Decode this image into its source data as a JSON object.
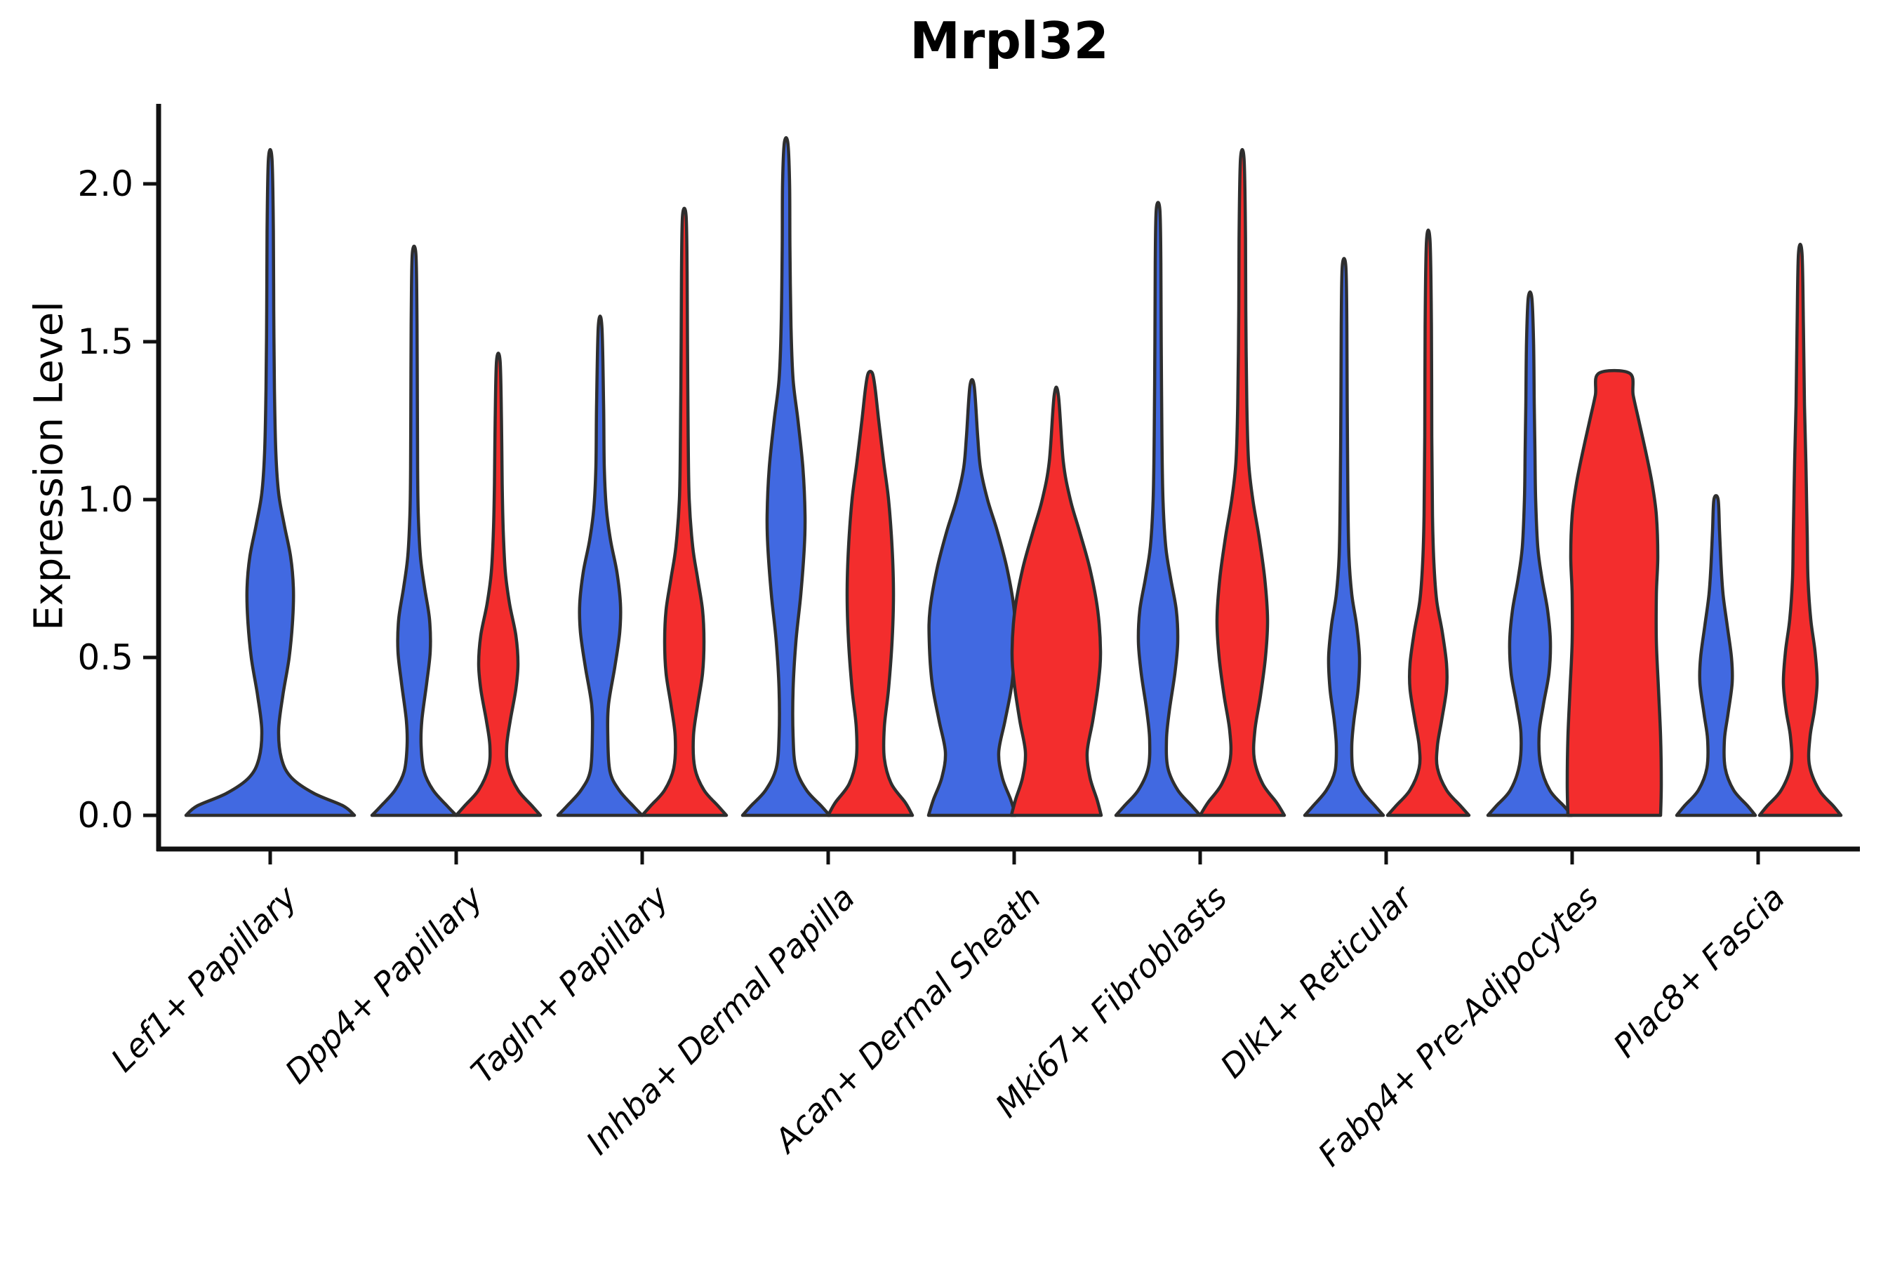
{
  "title": "Mrpl32",
  "ylabel": "Expression Level",
  "colors": {
    "blue": "#4169E1",
    "red": "#F32D2D",
    "outline": "#2E2E2E",
    "axis": "#111111",
    "text": "#000000"
  },
  "chart_data": {
    "type": "violin",
    "title": "Mrpl32",
    "ylabel": "Expression Level",
    "xlabel": "",
    "ylim": [
      -0.12,
      2.25
    ],
    "grid": false,
    "legend": "none",
    "yticks": [
      0.0,
      0.5,
      1.0,
      1.5,
      2.0
    ],
    "ytick_labels": [
      "0.0",
      "0.5",
      "1.0",
      "1.5",
      "2.0"
    ],
    "categories": [
      "Lef1+ Papillary",
      "Dpp4+ Papillary",
      "Tagln+ Papillary",
      "Inhba+ Dermal Papilla",
      "Acan+ Dermal Sheath",
      "Mki67+ Fibroblasts",
      "Dlk1+ Reticular",
      "Fabp4+ Pre-Adipocytes",
      "Plac8+ Fascia"
    ],
    "series_colors": {
      "blue": "#4169E1",
      "red": "#F32D2D"
    },
    "violins": [
      {
        "category_index": 0,
        "group": "blue",
        "peak_expression": 2.08,
        "profile": [
          [
            0,
            120
          ],
          [
            0.03,
            104
          ],
          [
            0.07,
            62
          ],
          [
            0.12,
            30
          ],
          [
            0.18,
            16
          ],
          [
            0.27,
            12
          ],
          [
            0.38,
            18
          ],
          [
            0.5,
            27
          ],
          [
            0.62,
            32
          ],
          [
            0.72,
            33
          ],
          [
            0.82,
            29
          ],
          [
            0.92,
            20
          ],
          [
            1.02,
            12
          ],
          [
            1.15,
            8
          ],
          [
            1.35,
            6
          ],
          [
            1.6,
            5
          ],
          [
            1.85,
            4.5
          ],
          [
            2.08,
            2.5
          ]
        ]
      },
      {
        "category_index": 1,
        "group": "blue",
        "peak_expression": 1.78,
        "profile": [
          [
            0,
            60
          ],
          [
            0.03,
            47
          ],
          [
            0.08,
            27
          ],
          [
            0.14,
            14
          ],
          [
            0.22,
            10
          ],
          [
            0.3,
            11
          ],
          [
            0.42,
            18
          ],
          [
            0.52,
            23
          ],
          [
            0.62,
            22
          ],
          [
            0.72,
            15
          ],
          [
            0.82,
            9
          ],
          [
            0.95,
            6
          ],
          [
            1.1,
            5
          ],
          [
            1.4,
            4.5
          ],
          [
            1.6,
            4
          ],
          [
            1.78,
            2.5
          ]
        ]
      },
      {
        "category_index": 1,
        "group": "red",
        "peak_expression": 1.44,
        "profile": [
          [
            0,
            60
          ],
          [
            0.03,
            48
          ],
          [
            0.08,
            28
          ],
          [
            0.15,
            14
          ],
          [
            0.22,
            12
          ],
          [
            0.3,
            17
          ],
          [
            0.4,
            25
          ],
          [
            0.48,
            28
          ],
          [
            0.57,
            25
          ],
          [
            0.67,
            16
          ],
          [
            0.77,
            10
          ],
          [
            0.9,
            7
          ],
          [
            1.05,
            5.5
          ],
          [
            1.25,
            4.5
          ],
          [
            1.44,
            2.5
          ]
        ]
      },
      {
        "category_index": 2,
        "group": "blue",
        "peak_expression": 1.55,
        "profile": [
          [
            0,
            60
          ],
          [
            0.03,
            47
          ],
          [
            0.08,
            27
          ],
          [
            0.14,
            14
          ],
          [
            0.25,
            11
          ],
          [
            0.35,
            12
          ],
          [
            0.47,
            21
          ],
          [
            0.58,
            28
          ],
          [
            0.67,
            29
          ],
          [
            0.77,
            24
          ],
          [
            0.87,
            15
          ],
          [
            0.97,
            9
          ],
          [
            1.1,
            6
          ],
          [
            1.3,
            5
          ],
          [
            1.55,
            2.5
          ]
        ]
      },
      {
        "category_index": 2,
        "group": "red",
        "peak_expression": 1.9,
        "profile": [
          [
            0,
            60
          ],
          [
            0.03,
            48
          ],
          [
            0.08,
            28
          ],
          [
            0.15,
            15
          ],
          [
            0.25,
            13
          ],
          [
            0.35,
            19
          ],
          [
            0.45,
            26
          ],
          [
            0.55,
            28
          ],
          [
            0.65,
            26
          ],
          [
            0.75,
            19
          ],
          [
            0.85,
            12
          ],
          [
            1.0,
            7
          ],
          [
            1.2,
            5.5
          ],
          [
            1.5,
            4.5
          ],
          [
            1.72,
            4
          ],
          [
            1.9,
            2.5
          ]
        ]
      },
      {
        "category_index": 3,
        "group": "blue",
        "peak_expression": 2.13,
        "profile": [
          [
            0,
            62
          ],
          [
            0.03,
            50
          ],
          [
            0.08,
            29
          ],
          [
            0.15,
            14
          ],
          [
            0.25,
            10
          ],
          [
            0.4,
            10
          ],
          [
            0.55,
            14
          ],
          [
            0.7,
            21
          ],
          [
            0.85,
            26
          ],
          [
            0.95,
            27
          ],
          [
            1.1,
            24
          ],
          [
            1.25,
            17
          ],
          [
            1.38,
            10
          ],
          [
            1.55,
            7
          ],
          [
            1.8,
            5.5
          ],
          [
            2.0,
            5
          ],
          [
            2.13,
            2.5
          ]
        ]
      },
      {
        "category_index": 3,
        "group": "red",
        "peak_expression": 1.4,
        "profile": [
          [
            0,
            60
          ],
          [
            0.04,
            50
          ],
          [
            0.1,
            30
          ],
          [
            0.18,
            20
          ],
          [
            0.28,
            20
          ],
          [
            0.4,
            26
          ],
          [
            0.55,
            31
          ],
          [
            0.7,
            33
          ],
          [
            0.85,
            31
          ],
          [
            1.0,
            26
          ],
          [
            1.12,
            19
          ],
          [
            1.25,
            12
          ],
          [
            1.35,
            7
          ],
          [
            1.4,
            3
          ]
        ]
      },
      {
        "category_index": 4,
        "group": "blue",
        "peak_expression": 1.36,
        "profile": [
          [
            0,
            62
          ],
          [
            0.05,
            55
          ],
          [
            0.12,
            43
          ],
          [
            0.2,
            38
          ],
          [
            0.3,
            47
          ],
          [
            0.42,
            57
          ],
          [
            0.55,
            61
          ],
          [
            0.65,
            60
          ],
          [
            0.78,
            50
          ],
          [
            0.9,
            36
          ],
          [
            1.0,
            22
          ],
          [
            1.1,
            12
          ],
          [
            1.2,
            8
          ],
          [
            1.36,
            3
          ]
        ]
      },
      {
        "category_index": 4,
        "group": "red",
        "peak_expression": 1.33,
        "profile": [
          [
            0,
            64
          ],
          [
            0.05,
            58
          ],
          [
            0.12,
            48
          ],
          [
            0.2,
            44
          ],
          [
            0.3,
            52
          ],
          [
            0.42,
            60
          ],
          [
            0.52,
            63
          ],
          [
            0.65,
            59
          ],
          [
            0.78,
            48
          ],
          [
            0.9,
            33
          ],
          [
            1.0,
            20
          ],
          [
            1.12,
            10
          ],
          [
            1.33,
            3
          ]
        ]
      },
      {
        "category_index": 5,
        "group": "blue",
        "peak_expression": 1.92,
        "profile": [
          [
            0,
            60
          ],
          [
            0.03,
            48
          ],
          [
            0.08,
            28
          ],
          [
            0.15,
            14
          ],
          [
            0.24,
            12
          ],
          [
            0.33,
            16
          ],
          [
            0.45,
            24
          ],
          [
            0.55,
            28
          ],
          [
            0.65,
            26
          ],
          [
            0.75,
            18
          ],
          [
            0.85,
            11
          ],
          [
            1.0,
            7
          ],
          [
            1.2,
            5.5
          ],
          [
            1.5,
            4.5
          ],
          [
            1.75,
            4
          ],
          [
            1.92,
            2.5
          ]
        ]
      },
      {
        "category_index": 5,
        "group": "red",
        "peak_expression": 2.08,
        "profile": [
          [
            0,
            60
          ],
          [
            0.04,
            49
          ],
          [
            0.1,
            29
          ],
          [
            0.18,
            17
          ],
          [
            0.27,
            18
          ],
          [
            0.38,
            26
          ],
          [
            0.5,
            33
          ],
          [
            0.62,
            36
          ],
          [
            0.75,
            32
          ],
          [
            0.88,
            24
          ],
          [
            1.0,
            15
          ],
          [
            1.12,
            9
          ],
          [
            1.3,
            6.5
          ],
          [
            1.6,
            5
          ],
          [
            1.85,
            4.5
          ],
          [
            2.08,
            2.5
          ]
        ]
      },
      {
        "category_index": 6,
        "group": "blue",
        "peak_expression": 1.74,
        "profile": [
          [
            0,
            56
          ],
          [
            0.03,
            44
          ],
          [
            0.08,
            25
          ],
          [
            0.14,
            13
          ],
          [
            0.22,
            11
          ],
          [
            0.3,
            14
          ],
          [
            0.4,
            20
          ],
          [
            0.5,
            22
          ],
          [
            0.6,
            18
          ],
          [
            0.7,
            11
          ],
          [
            0.82,
            7
          ],
          [
            1.0,
            5.5
          ],
          [
            1.3,
            4.5
          ],
          [
            1.55,
            4
          ],
          [
            1.74,
            2.5
          ]
        ]
      },
      {
        "category_index": 6,
        "group": "red",
        "peak_expression": 1.82,
        "profile": [
          [
            0,
            58
          ],
          [
            0.03,
            46
          ],
          [
            0.08,
            26
          ],
          [
            0.15,
            13
          ],
          [
            0.22,
            13
          ],
          [
            0.3,
            19
          ],
          [
            0.4,
            26
          ],
          [
            0.48,
            26
          ],
          [
            0.58,
            20
          ],
          [
            0.68,
            12
          ],
          [
            0.8,
            8
          ],
          [
            0.95,
            6
          ],
          [
            1.2,
            5
          ],
          [
            1.55,
            4.5
          ],
          [
            1.82,
            2.5
          ]
        ]
      },
      {
        "category_index": 7,
        "group": "blue",
        "peak_expression": 1.64,
        "profile": [
          [
            0,
            60
          ],
          [
            0.03,
            48
          ],
          [
            0.08,
            28
          ],
          [
            0.16,
            15
          ],
          [
            0.26,
            13
          ],
          [
            0.35,
            19
          ],
          [
            0.45,
            27
          ],
          [
            0.55,
            29
          ],
          [
            0.65,
            25
          ],
          [
            0.75,
            17
          ],
          [
            0.85,
            11
          ],
          [
            1.0,
            8
          ],
          [
            1.15,
            7
          ],
          [
            1.3,
            6
          ],
          [
            1.5,
            5
          ],
          [
            1.64,
            2.5
          ]
        ]
      },
      {
        "category_index": 7,
        "group": "red",
        "peak_expression": 1.4,
        "profile": [
          [
            0,
            66
          ],
          [
            0.1,
            67
          ],
          [
            0.25,
            66
          ],
          [
            0.4,
            63
          ],
          [
            0.55,
            60
          ],
          [
            0.7,
            60
          ],
          [
            0.82,
            62
          ],
          [
            0.95,
            60
          ],
          [
            1.05,
            54
          ],
          [
            1.15,
            45
          ],
          [
            1.25,
            35
          ],
          [
            1.33,
            27
          ],
          [
            1.4,
            22
          ]
        ]
      },
      {
        "category_index": 8,
        "group": "blue",
        "peak_expression": 1.0,
        "profile": [
          [
            0,
            56
          ],
          [
            0.03,
            45
          ],
          [
            0.08,
            25
          ],
          [
            0.15,
            13
          ],
          [
            0.24,
            12
          ],
          [
            0.32,
            17
          ],
          [
            0.42,
            23
          ],
          [
            0.5,
            22
          ],
          [
            0.6,
            16
          ],
          [
            0.7,
            10
          ],
          [
            0.8,
            7
          ],
          [
            0.9,
            5
          ],
          [
            1.0,
            3
          ]
        ]
      },
      {
        "category_index": 8,
        "group": "red",
        "peak_expression": 1.78,
        "profile": [
          [
            0,
            58
          ],
          [
            0.03,
            47
          ],
          [
            0.08,
            27
          ],
          [
            0.16,
            13
          ],
          [
            0.25,
            14
          ],
          [
            0.33,
            20
          ],
          [
            0.42,
            24
          ],
          [
            0.52,
            21
          ],
          [
            0.62,
            15
          ],
          [
            0.75,
            11
          ],
          [
            0.88,
            10
          ],
          [
            1.0,
            9
          ],
          [
            1.12,
            8
          ],
          [
            1.3,
            6
          ],
          [
            1.55,
            4.5
          ],
          [
            1.78,
            2.5
          ]
        ]
      }
    ]
  }
}
